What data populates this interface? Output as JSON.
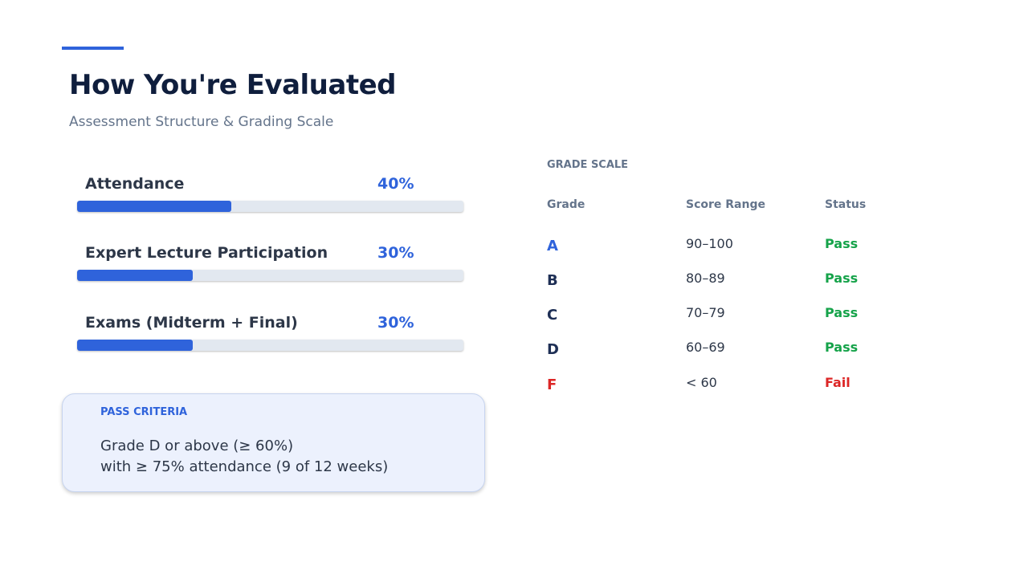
{
  "header": {
    "title": "How You're Evaluated",
    "subtitle": "Assessment Structure & Grading Scale",
    "accent_color": "#2f63db"
  },
  "weights": [
    {
      "label": "Attendance",
      "percent_label": "40%",
      "fraction": 0.4
    },
    {
      "label": "Expert Lecture Participation",
      "percent_label": "30%",
      "fraction": 0.3
    },
    {
      "label": "Exams (Midterm + Final)",
      "percent_label": "30%",
      "fraction": 0.3
    }
  ],
  "pass_criteria": {
    "heading": "PASS CRITERIA",
    "line1": "Grade D or above (≥ 60%)",
    "line2": "with ≥ 75% attendance (9 of 12 weeks)"
  },
  "grade_scale": {
    "title": "GRADE SCALE",
    "columns": [
      "Grade",
      "Score Range",
      "Status"
    ],
    "rows": [
      {
        "grade": "A",
        "range": "90–100",
        "status": "Pass",
        "grade_color": "#2f63db",
        "status_color": "#16a34a"
      },
      {
        "grade": "B",
        "range": "80–89",
        "status": "Pass",
        "grade_color": "#1e2f55",
        "status_color": "#16a34a"
      },
      {
        "grade": "C",
        "range": "70–79",
        "status": "Pass",
        "grade_color": "#1e2f55",
        "status_color": "#16a34a"
      },
      {
        "grade": "D",
        "range": "60–69",
        "status": "Pass",
        "grade_color": "#1e2f55",
        "status_color": "#16a34a"
      },
      {
        "grade": "F",
        "range": "< 60",
        "status": "Fail",
        "grade_color": "#dc2626",
        "status_color": "#dc2626"
      }
    ]
  }
}
